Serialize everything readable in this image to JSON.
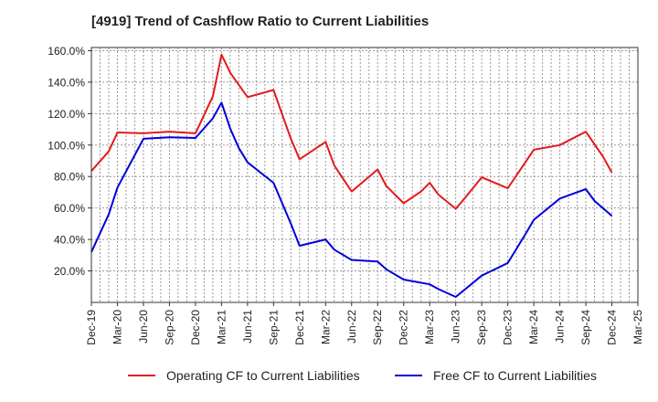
{
  "title": "[4919]  Trend of Cashflow Ratio to Current Liabilities",
  "colors": {
    "operating": "#e31a1c",
    "free": "#0000dd",
    "grid": "#999999",
    "axis": "#333333"
  },
  "chart_data": {
    "type": "line",
    "title": "[4919]  Trend of Cashflow Ratio to Current Liabilities",
    "xlabel": "",
    "ylabel": "",
    "ylim": [
      0,
      162
    ],
    "grid": true,
    "legend_position": "bottom",
    "x_tick_labels": [
      "Dec-19",
      "Mar-20",
      "Jun-20",
      "Sep-20",
      "Dec-20",
      "Mar-21",
      "Jun-21",
      "Sep-21",
      "Dec-21",
      "Mar-22",
      "Jun-22",
      "Sep-22",
      "Dec-22",
      "Mar-23",
      "Jun-23",
      "Sep-23",
      "Dec-23",
      "Mar-24",
      "Jun-24",
      "Sep-24",
      "Dec-24",
      "Mar-25"
    ],
    "y_ticks": [
      20,
      40,
      60,
      80,
      100,
      120,
      140,
      160
    ],
    "y_tick_labels": [
      "20.0%",
      "40.0%",
      "60.0%",
      "80.0%",
      "100.0%",
      "120.0%",
      "140.0%",
      "160.0%"
    ],
    "x": [
      "Dec-19",
      "Mar-20",
      "Jun-20",
      "Sep-20",
      "Dec-20",
      "Mar-21",
      "Jun-21",
      "Sep-21",
      "Dec-21",
      "Mar-22",
      "Jun-22",
      "Sep-22",
      "Dec-22",
      "Mar-23",
      "Jun-23",
      "Sep-23",
      "Dec-23",
      "Mar-24",
      "Jun-24",
      "Sep-24",
      "Dec-24"
    ],
    "series": [
      {
        "name": "Operating CF to Current Liabilities",
        "color": "#e31a1c",
        "x": [
          "Dec-19",
          "Feb-20",
          "Mar-20",
          "Jun-20",
          "Sep-20",
          "Dec-20",
          "Feb-21",
          "Mar-21",
          "Apr-21",
          "Jun-21",
          "Sep-21",
          "Nov-21",
          "Dec-21",
          "Mar-22",
          "Apr-22",
          "Jun-22",
          "Sep-22",
          "Oct-22",
          "Dec-22",
          "Feb-23",
          "Mar-23",
          "Apr-23",
          "Jun-23",
          "Jul-23",
          "Sep-23",
          "Dec-23",
          "Mar-24",
          "Jun-24",
          "Sep-24",
          "Nov-24",
          "Dec-24"
        ],
        "values": [
          83.5,
          96,
          108,
          107.5,
          108.5,
          107.5,
          131,
          157.5,
          146,
          130.5,
          135,
          104,
          91,
          102,
          87,
          70.5,
          84.5,
          74,
          63,
          70.5,
          76,
          68.5,
          59.5,
          66,
          79.5,
          72.5,
          97,
          100,
          108.5,
          92.5,
          82.5
        ]
      },
      {
        "name": "Free CF to Current Liabilities",
        "color": "#0000dd",
        "x": [
          "Dec-19",
          "Feb-20",
          "Mar-20",
          "Jun-20",
          "Sep-20",
          "Dec-20",
          "Feb-21",
          "Mar-21",
          "Apr-21",
          "May-21",
          "Jun-21",
          "Sep-21",
          "Nov-21",
          "Dec-21",
          "Mar-22",
          "Apr-22",
          "Jun-22",
          "Sep-22",
          "Oct-22",
          "Dec-22",
          "Mar-23",
          "Apr-23",
          "Jun-23",
          "Jul-23",
          "Sep-23",
          "Dec-23",
          "Feb-24",
          "Mar-24",
          "Jun-24",
          "Sep-24",
          "Oct-24",
          "Dec-24"
        ],
        "values": [
          32,
          56,
          73,
          104,
          105,
          104.5,
          117,
          127,
          110.5,
          98,
          89,
          76,
          50,
          36,
          40,
          33.5,
          27,
          26,
          21,
          14.5,
          11.5,
          8.5,
          3.5,
          8,
          17,
          25,
          43,
          52.5,
          66,
          72,
          64.5,
          55
        ]
      }
    ]
  }
}
